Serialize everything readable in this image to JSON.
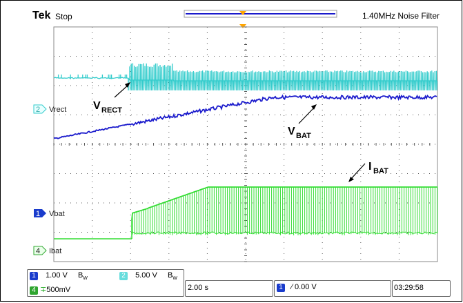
{
  "header": {
    "brand": "Tek",
    "run_state": "Stop",
    "filter": "1.40MHz  Noise Filter"
  },
  "channel_labels": {
    "ch2": "Vrect",
    "ch1": "Vbat",
    "ch4": "Ibat",
    "ch2_num": "2",
    "ch1_num": "1",
    "ch4_num": "4"
  },
  "annotations": {
    "vrect_main": "V",
    "vrect_sub": "RECT",
    "vbat_main": "V",
    "vbat_sub": "BAT",
    "ibat_main": "I",
    "ibat_sub": "BAT"
  },
  "status": {
    "ch1_badge": "1",
    "ch1_scale": "1.00 V",
    "ch1_bw": "B",
    "ch1_bw_sub": "W",
    "ch2_badge": "2",
    "ch2_scale": "5.00 V",
    "ch2_bw": "B",
    "ch2_bw_sub": "W",
    "ch4_badge": "4",
    "ch4_scale": "500mV",
    "timebase": "2.00 s",
    "trig_badge": "1",
    "trig_level": "0.00 V",
    "time": "03:29:58"
  },
  "colors": {
    "ch1": "#1a1acc",
    "ch2": "#33cccc",
    "ch4": "#33dd33",
    "grid": "#555555"
  },
  "chart_data": {
    "type": "line",
    "title": "",
    "xlabel": "",
    "ylabel": "",
    "timebase_per_div": "2.00 s",
    "series": [
      {
        "name": "Vrect",
        "description": "flat until ~2.4 div, then pulsing waveform"
      },
      {
        "name": "Vbat",
        "description": "rising ramp, then flat after ~6.5 div"
      },
      {
        "name": "Ibat",
        "description": "zero until ~2.4 div, then ramped pulses up to ~ -0.9 div"
      }
    ]
  }
}
